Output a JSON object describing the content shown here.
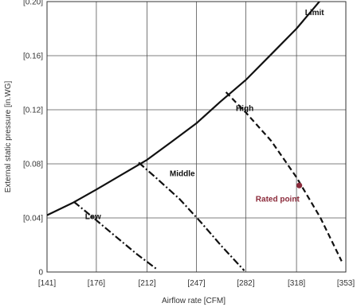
{
  "chart_data": {
    "type": "line",
    "xlabel": "Airflow rate  [CFM]",
    "ylabel": "External static pressure  [in.WG]",
    "xlim": [
      141,
      353
    ],
    "ylim": [
      0,
      0.2
    ],
    "x_ticks": [
      {
        "value": 141,
        "label": "[141]"
      },
      {
        "value": 176,
        "label": "[176]"
      },
      {
        "value": 212,
        "label": "[212]"
      },
      {
        "value": 247,
        "label": "[247]"
      },
      {
        "value": 282,
        "label": "[282]"
      },
      {
        "value": 318,
        "label": "[318]"
      },
      {
        "value": 353,
        "label": "[353]"
      }
    ],
    "y_ticks": [
      {
        "value": 0,
        "label": "0"
      },
      {
        "value": 0.04,
        "label": "[0.04]"
      },
      {
        "value": 0.08,
        "label": "[0.08]"
      },
      {
        "value": 0.12,
        "label": "[0.12]"
      },
      {
        "value": 0.16,
        "label": "[0.16]"
      },
      {
        "value": 0.2,
        "label": "[0.20]"
      }
    ],
    "grid": true,
    "series": [
      {
        "name": "Limit",
        "style": "solid",
        "color": "#111111",
        "x": [
          141,
          159,
          176,
          194,
          212,
          229,
          247,
          264,
          282,
          300,
          318,
          335,
          353
        ],
        "y": [
          0.042,
          0.051,
          0.061,
          0.072,
          0.083,
          0.096,
          0.11,
          0.126,
          0.142,
          0.161,
          0.18,
          0.201,
          0.222
        ],
        "label_x": 324,
        "label_y": 0.19
      },
      {
        "name": "High",
        "style": "dashed",
        "color": "#111111",
        "x": [
          268,
          282,
          300,
          318,
          335,
          350
        ],
        "y": [
          0.133,
          0.118,
          0.097,
          0.07,
          0.04,
          0.008
        ],
        "label_x": 275,
        "label_y": 0.119
      },
      {
        "name": "Middle",
        "style": "dashdot",
        "color": "#111111",
        "x": [
          206,
          218,
          235,
          250,
          265,
          281
        ],
        "y": [
          0.081,
          0.07,
          0.054,
          0.037,
          0.019,
          0.001
        ],
        "label_x": 228,
        "label_y": 0.071
      },
      {
        "name": "Low",
        "style": "dashdot",
        "color": "#111111",
        "x": [
          160,
          174,
          190,
          205,
          219
        ],
        "y": [
          0.052,
          0.04,
          0.026,
          0.013,
          0.002
        ],
        "label_x": 168,
        "label_y": 0.039
      }
    ],
    "points": [
      {
        "name": "Rated point",
        "x": 320,
        "y": 0.064,
        "color": "#8b2a3a",
        "label_x": 289,
        "label_y": 0.052
      }
    ]
  }
}
